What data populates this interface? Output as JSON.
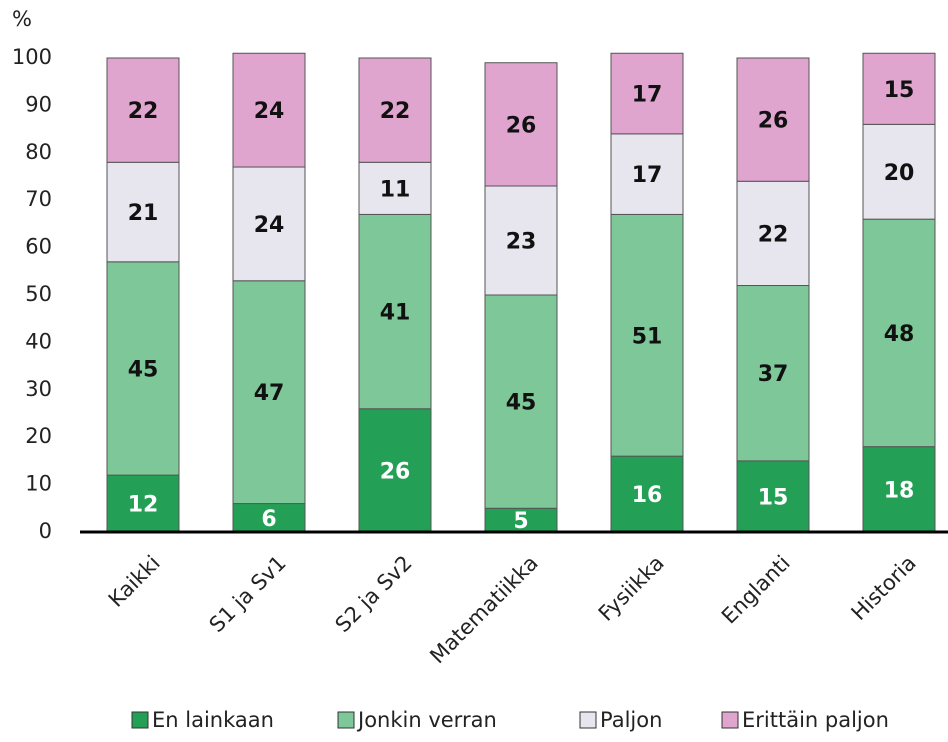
{
  "chart_data": {
    "type": "stacked_bar",
    "y_axis_label": "%",
    "categories": [
      "Kaikki",
      "S1 ja Sv1",
      "S2 ja Sv2",
      "Matematiikka",
      "Fysiikka",
      "Englanti",
      "Historia"
    ],
    "series": [
      {
        "name": "En lainkaan",
        "color": "#23a055",
        "values": [
          12,
          6,
          26,
          5,
          16,
          15,
          18
        ]
      },
      {
        "name": "Jonkin verran",
        "color": "#7dc798",
        "values": [
          45,
          47,
          41,
          45,
          51,
          37,
          48
        ]
      },
      {
        "name": "Paljon",
        "color": "#e7e5ee",
        "values": [
          21,
          24,
          11,
          23,
          17,
          22,
          20
        ]
      },
      {
        "name": "Erittäin paljon",
        "color": "#e0a5cf",
        "values": [
          22,
          24,
          22,
          26,
          17,
          26,
          15
        ]
      }
    ],
    "ylim": [
      0,
      100
    ],
    "yticks": [
      0,
      10,
      20,
      30,
      40,
      50,
      60,
      70,
      80,
      90,
      100
    ],
    "grid": false,
    "legend": "bottom"
  }
}
